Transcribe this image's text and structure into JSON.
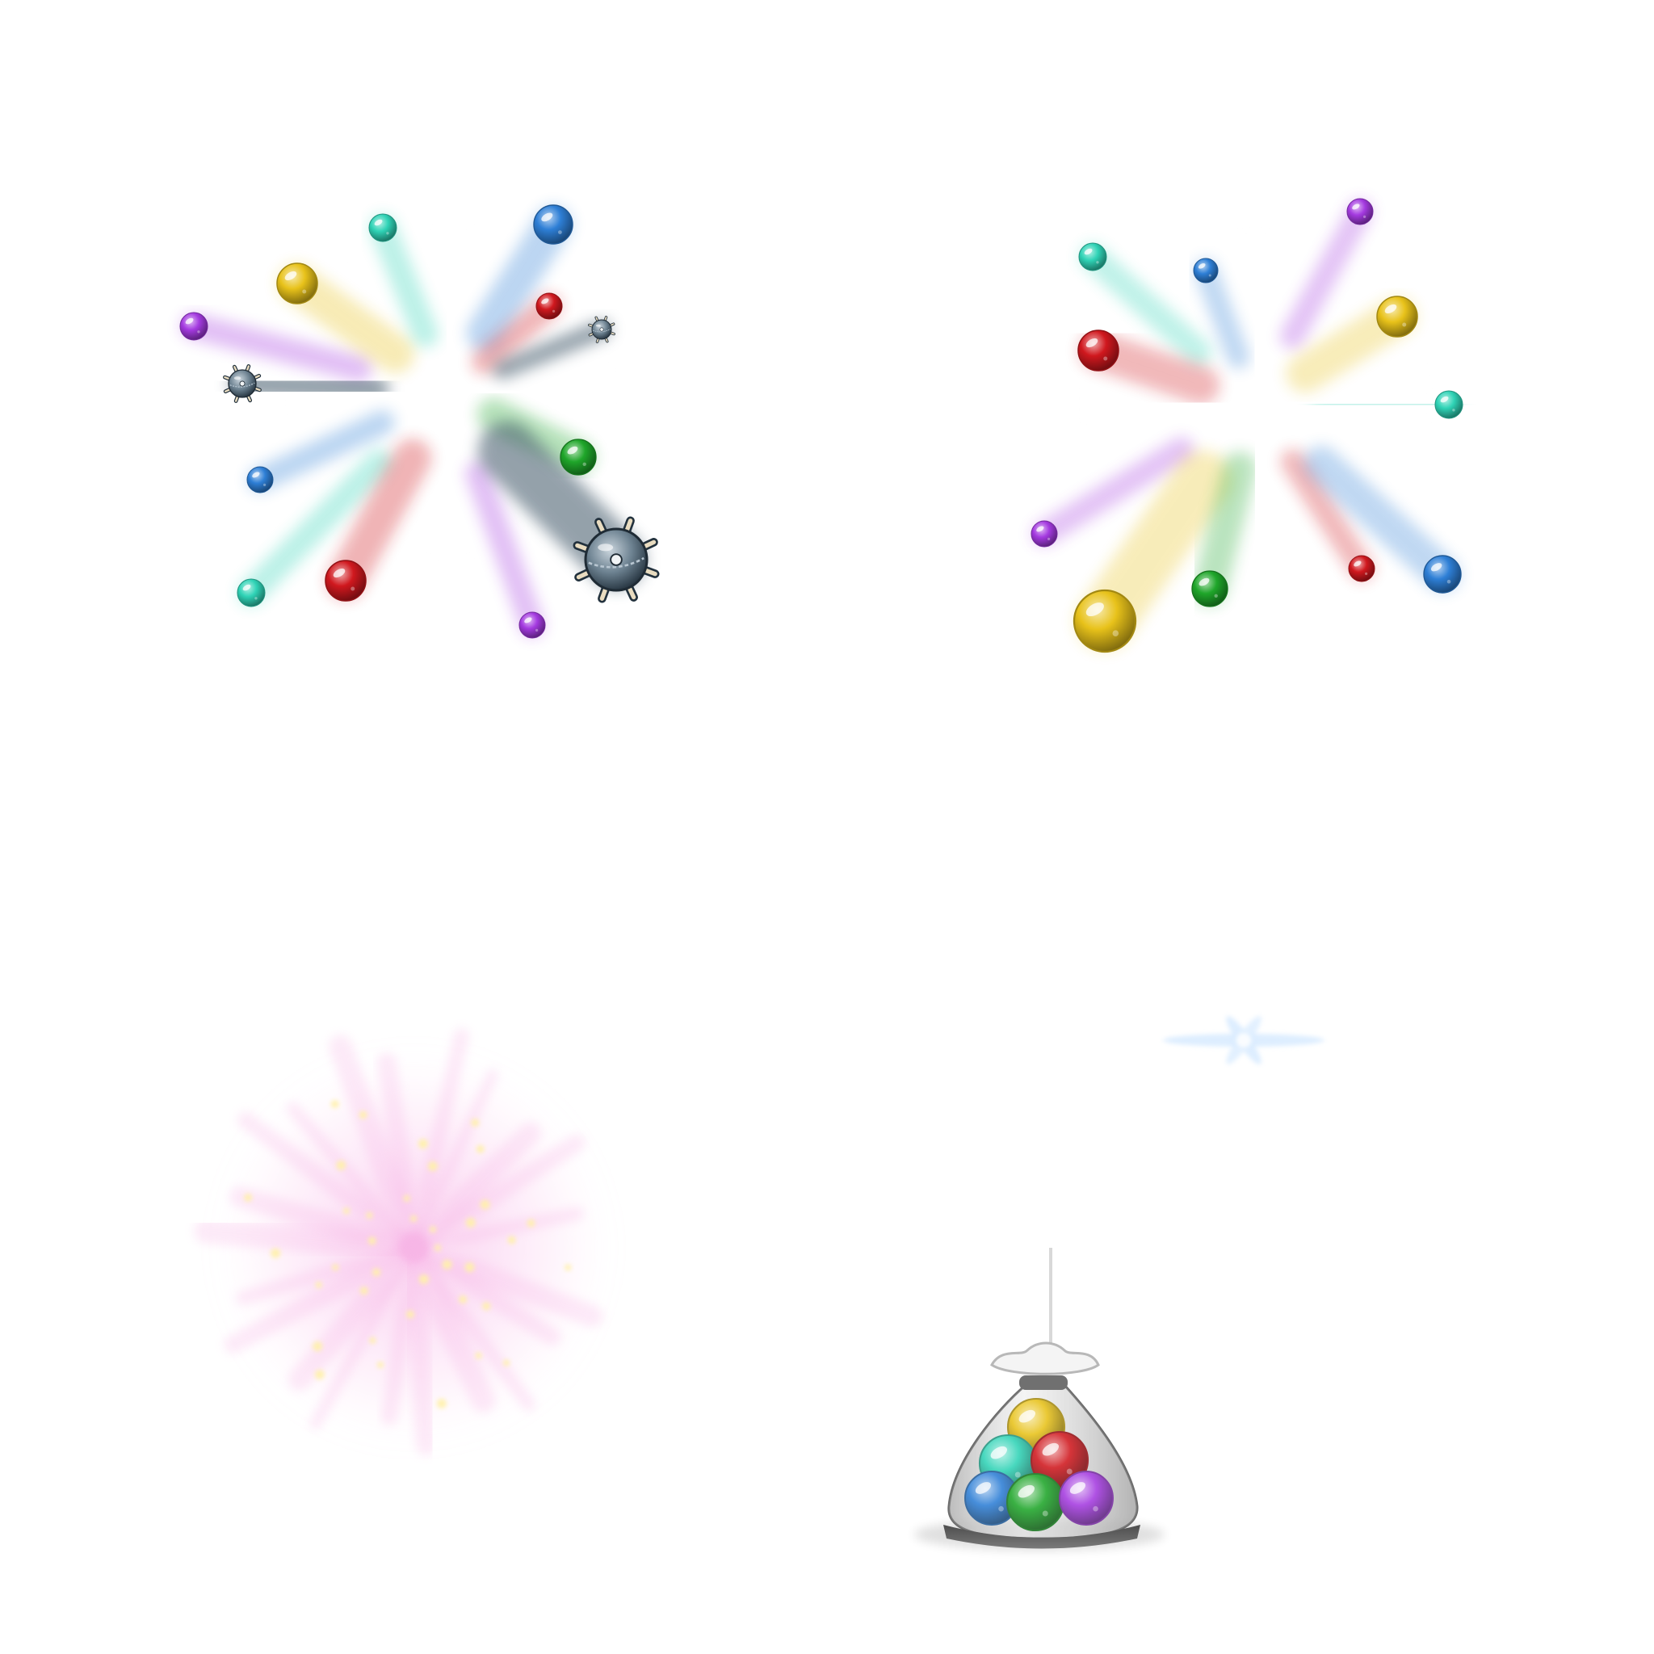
{
  "sprite_sheet": {
    "background": "#ffffff",
    "sprites": [
      {
        "name": "marble-and-mine-burst",
        "kind": "burst",
        "items": [
          "purple-marble",
          "yellow-marble",
          "teal-marble",
          "blue-marble",
          "red-marble",
          "small-mine",
          "small-mine",
          "green-marble",
          "blue-marble",
          "teal-marble",
          "red-marble",
          "purple-marble",
          "large-mine"
        ]
      },
      {
        "name": "marble-burst",
        "kind": "burst",
        "items": [
          "teal-marble",
          "blue-marble",
          "purple-marble",
          "red-marble",
          "yellow-marble",
          "teal-marble",
          "purple-marble",
          "yellow-marble",
          "green-marble",
          "red-marble",
          "blue-marble"
        ]
      },
      {
        "name": "pink-sparkle-glow",
        "kind": "glow",
        "color": "#f7b6e6",
        "sparkle_color": "#fff1a8"
      },
      {
        "name": "blue-star-glint",
        "kind": "glint",
        "color": "#cfe6ff"
      },
      {
        "name": "marble-bag",
        "kind": "bag",
        "contents": [
          "yellow-marble",
          "teal-marble",
          "red-marble",
          "blue-marble",
          "green-marble",
          "purple-marble"
        ]
      }
    ],
    "palette": {
      "purple": "#a43ae0",
      "yellow": "#e8c21a",
      "teal": "#2fd3b6",
      "blue": "#2e7fd6",
      "red": "#d0181e",
      "green": "#1fa62a",
      "mine": "#5a6f7f"
    }
  }
}
